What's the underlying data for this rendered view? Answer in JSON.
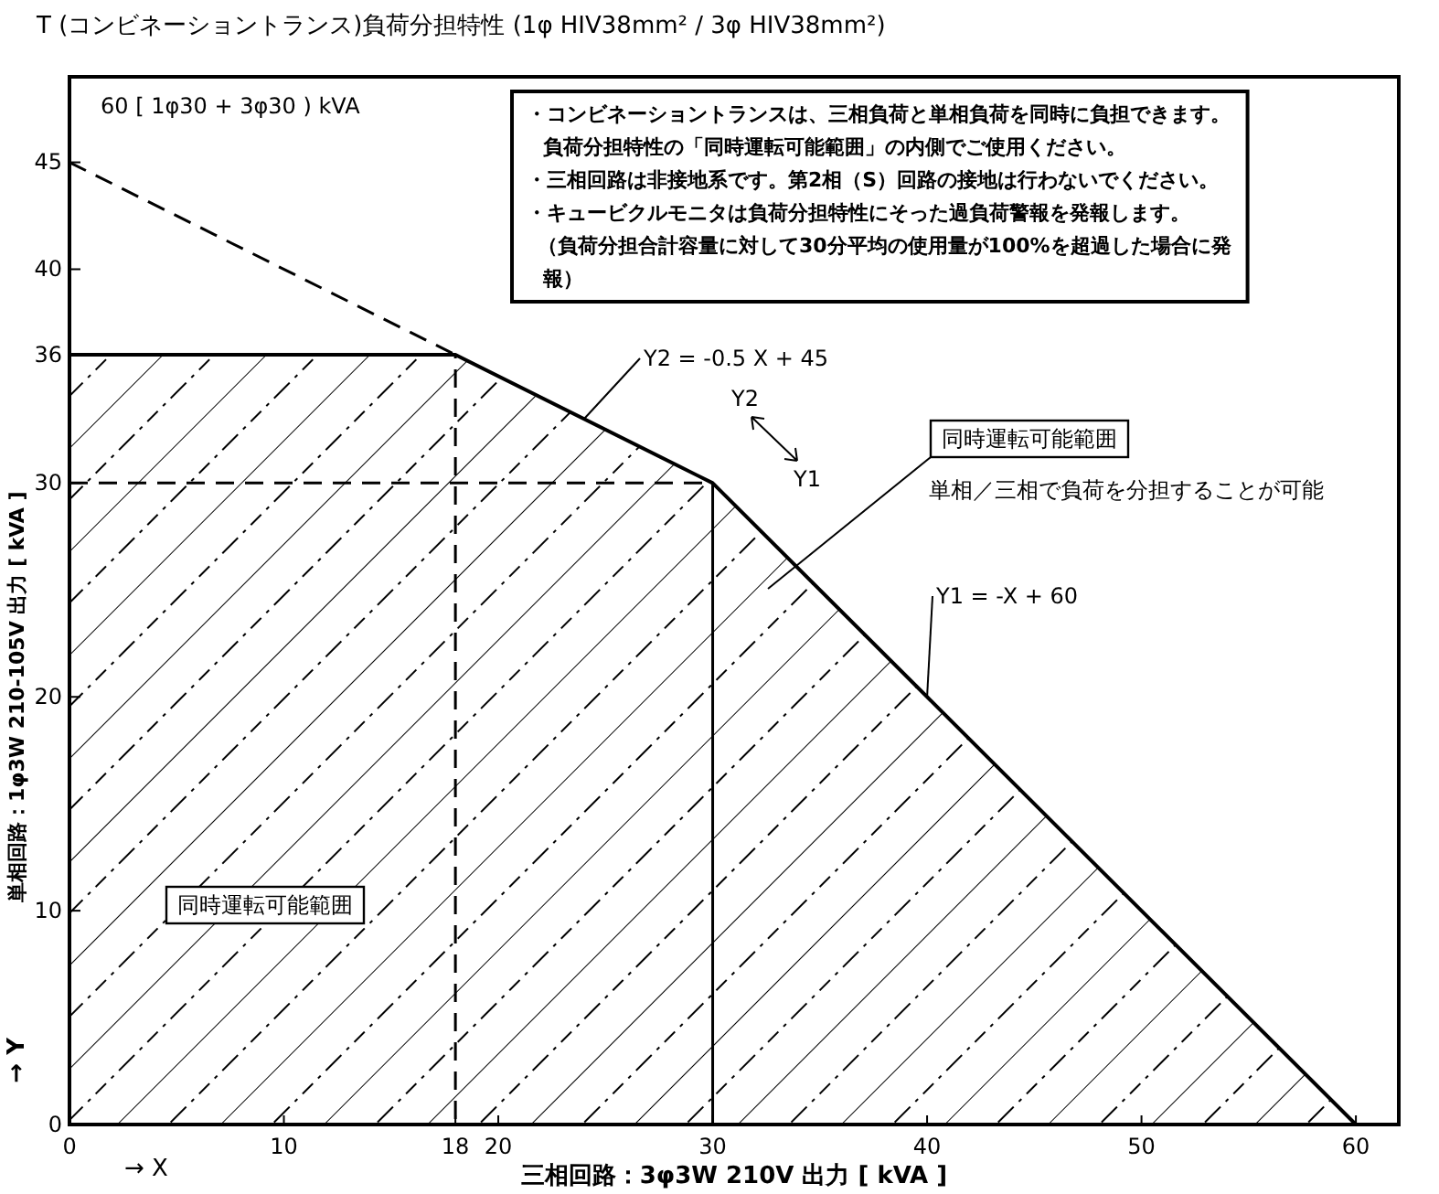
{
  "chart_data": {
    "type": "area",
    "title": "T (コンビネーショントランス)負荷分担特性 (1φ HIV38mm² / 3φ HIV38mm²)",
    "xlabel": "三相回路：3φ3W 210V 出力 [ kVA ]",
    "ylabel": "単相回路：1φ3W 210-105V 出力 [ kVA ]",
    "xlim": [
      0,
      62
    ],
    "ylim": [
      0,
      49
    ],
    "xticks": [
      0,
      10,
      18,
      20,
      30,
      40,
      50,
      60
    ],
    "yticks": [
      0,
      10,
      20,
      30,
      36,
      40,
      45
    ],
    "grid": false,
    "series": [
      {
        "type": "area",
        "color": "#000000",
        "x": [
          0,
          18,
          30,
          60
        ],
        "values": [
          36,
          36,
          30,
          0
        ]
      },
      {
        "type": "line",
        "color": "#000000",
        "line_style": "dashed",
        "x": [
          0,
          18
        ],
        "values": [
          45,
          36
        ]
      }
    ],
    "ref_lines": [
      {
        "axis": "x",
        "value": 18,
        "color": "#000000",
        "line_style": "dashed"
      },
      {
        "axis": "y",
        "value": 30,
        "color": "#000000",
        "line_style": "dashed"
      },
      {
        "axis": "x",
        "value": 30,
        "color": "#000000",
        "line_style": "solid"
      }
    ],
    "annotations": [
      "60 [ 1φ30 + 3φ30 ) kVA",
      "・コンビネーショントランスは、三相負荷と単相負荷を同時に負担できます。負荷分担特性の「同時運転可能範囲」の内側でご使用ください。",
      "・三相回路は非接地系です。第2相（S）回路の接地は行わないでください。",
      "・キュービクルモニタは負荷分担特性にそった過負荷警報を発報します。",
      "（負荷分担合計容量に対して30分平均の使用量が100%を超過した場合に発報）",
      {
        "text": "Y2 = -0.5 X + 45",
        "x": 24,
        "y": 33
      },
      "同時運転可能範囲",
      "単相／三相で負荷を分担することが可能",
      {
        "text": "Y1 = -X + 60",
        "x": 40,
        "y": 20
      },
      "Y2",
      "Y1",
      "同時運転可能範囲",
      "→ Y",
      "→ X"
    ]
  }
}
